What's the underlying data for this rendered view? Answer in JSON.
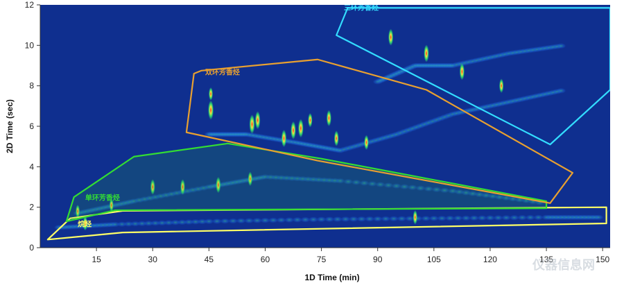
{
  "chart_data": {
    "type": "heatmap",
    "title": "",
    "xlabel": "1D Time (min)",
    "ylabel": "2D Time (sec)",
    "xlim": [
      0,
      152
    ],
    "ylim": [
      0,
      12
    ],
    "xticks": [
      15,
      30,
      45,
      60,
      75,
      90,
      105,
      120,
      135,
      150
    ],
    "yticks": [
      0,
      2,
      4,
      6,
      8,
      10,
      12
    ],
    "grid": false,
    "background_color": "#0f2f8f",
    "regions": [
      {
        "label": "烷烃",
        "color": "#ffff66",
        "label_color": "#ffff66",
        "label_anchor": [
          10,
          1.05
        ],
        "polygon": [
          [
            2,
            0.4
          ],
          [
            8,
            1.45
          ],
          [
            22,
            1.82
          ],
          [
            151,
            2.0
          ],
          [
            151,
            1.2
          ],
          [
            22,
            0.75
          ]
        ]
      },
      {
        "label": "单环芳香烃",
        "color": "#33dd33",
        "label_color": "#33dd33",
        "label_anchor": [
          12,
          2.35
        ],
        "polygon": [
          [
            7,
            1.3
          ],
          [
            9,
            2.5
          ],
          [
            25,
            4.5
          ],
          [
            50,
            5.15
          ],
          [
            75,
            4.4
          ],
          [
            135,
            2.3
          ],
          [
            135,
            1.95
          ],
          [
            20,
            1.85
          ]
        ],
        "fill": "rgba(40,180,60,0.18)"
      },
      {
        "label": "双环芳香烃",
        "color": "#e8a030",
        "label_color": "#e8a030",
        "label_anchor": [
          44,
          8.55
        ],
        "polygon": [
          [
            39,
            5.7
          ],
          [
            41,
            8.6
          ],
          [
            43,
            8.75
          ],
          [
            74,
            9.3
          ],
          [
            103,
            7.8
          ],
          [
            142,
            3.7
          ],
          [
            136,
            2.2
          ],
          [
            74,
            4.3
          ]
        ]
      },
      {
        "label": "三环芳香烃",
        "color": "#33ddff",
        "label_color": "#33ddff",
        "label_anchor": [
          81,
          11.75
        ],
        "polygon": [
          [
            79,
            10.5
          ],
          [
            82,
            11.85
          ],
          [
            152,
            11.85
          ],
          [
            152,
            7.8
          ],
          [
            136,
            5.1
          ]
        ]
      }
    ],
    "series": [
      {
        "type": "elution_band",
        "points": [
          [
            5,
            1.0
          ],
          [
            20,
            1.15
          ],
          [
            45,
            1.3
          ],
          [
            75,
            1.4
          ],
          [
            105,
            1.45
          ],
          [
            135,
            1.5
          ],
          [
            150,
            1.5
          ]
        ]
      },
      {
        "type": "elution_band",
        "points": [
          [
            10,
            1.7
          ],
          [
            25,
            2.3
          ],
          [
            45,
            3.0
          ],
          [
            60,
            3.5
          ],
          [
            80,
            3.3
          ],
          [
            110,
            2.8
          ],
          [
            135,
            2.2
          ]
        ]
      },
      {
        "type": "elution_band",
        "points": [
          [
            45,
            5.6
          ],
          [
            55,
            5.6
          ],
          [
            68,
            5.2
          ],
          [
            80,
            4.8
          ],
          [
            95,
            5.6
          ],
          [
            110,
            6.6
          ],
          [
            125,
            7.2
          ],
          [
            140,
            7.8
          ]
        ]
      },
      {
        "type": "elution_band",
        "points": [
          [
            90,
            8.2
          ],
          [
            100,
            9.0
          ],
          [
            110,
            9.0
          ],
          [
            125,
            9.6
          ],
          [
            140,
            10.0
          ]
        ]
      }
    ],
    "peaks": [
      {
        "x": 45.5,
        "y": 6.8,
        "intensity": 1.0
      },
      {
        "x": 45.5,
        "y": 7.6,
        "intensity": 0.5
      },
      {
        "x": 56.5,
        "y": 6.1,
        "intensity": 1.0
      },
      {
        "x": 58,
        "y": 6.3,
        "intensity": 0.9
      },
      {
        "x": 65,
        "y": 5.4,
        "intensity": 0.85
      },
      {
        "x": 67.5,
        "y": 5.8,
        "intensity": 0.9
      },
      {
        "x": 69.5,
        "y": 5.9,
        "intensity": 0.95
      },
      {
        "x": 72,
        "y": 6.3,
        "intensity": 0.6
      },
      {
        "x": 77,
        "y": 6.4,
        "intensity": 0.75
      },
      {
        "x": 79,
        "y": 5.4,
        "intensity": 0.7
      },
      {
        "x": 87,
        "y": 5.2,
        "intensity": 0.65
      },
      {
        "x": 93.5,
        "y": 10.4,
        "intensity": 0.8
      },
      {
        "x": 103,
        "y": 9.6,
        "intensity": 0.85
      },
      {
        "x": 112.5,
        "y": 8.7,
        "intensity": 0.8
      },
      {
        "x": 123,
        "y": 8.0,
        "intensity": 0.6
      },
      {
        "x": 10,
        "y": 1.8,
        "intensity": 0.5
      },
      {
        "x": 19,
        "y": 2.1,
        "intensity": 0.5
      },
      {
        "x": 30,
        "y": 3.0,
        "intensity": 0.7
      },
      {
        "x": 38,
        "y": 3.0,
        "intensity": 0.7
      },
      {
        "x": 47.5,
        "y": 3.1,
        "intensity": 0.75
      },
      {
        "x": 56,
        "y": 3.4,
        "intensity": 0.6
      },
      {
        "x": 100,
        "y": 1.5,
        "intensity": 0.6
      },
      {
        "x": 12,
        "y": 1.2,
        "intensity": 0.6
      }
    ]
  }
}
